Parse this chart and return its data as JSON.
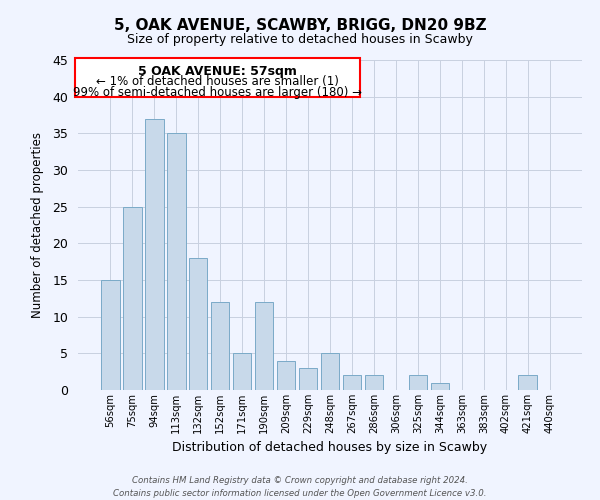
{
  "title": "5, OAK AVENUE, SCAWBY, BRIGG, DN20 9BZ",
  "subtitle": "Size of property relative to detached houses in Scawby",
  "xlabel": "Distribution of detached houses by size in Scawby",
  "ylabel": "Number of detached properties",
  "bar_color": "#c8d9ea",
  "bar_edge_color": "#7aaac8",
  "categories": [
    "56sqm",
    "75sqm",
    "94sqm",
    "113sqm",
    "132sqm",
    "152sqm",
    "171sqm",
    "190sqm",
    "209sqm",
    "229sqm",
    "248sqm",
    "267sqm",
    "286sqm",
    "306sqm",
    "325sqm",
    "344sqm",
    "363sqm",
    "383sqm",
    "402sqm",
    "421sqm",
    "440sqm"
  ],
  "values": [
    15,
    25,
    37,
    35,
    18,
    12,
    5,
    12,
    4,
    3,
    5,
    2,
    2,
    0,
    2,
    1,
    0,
    0,
    0,
    2,
    0
  ],
  "ylim": [
    0,
    45
  ],
  "yticks": [
    0,
    5,
    10,
    15,
    20,
    25,
    30,
    35,
    40,
    45
  ],
  "annotation_line1": "5 OAK AVENUE: 57sqm",
  "annotation_line2": "← 1% of detached houses are smaller (1)",
  "annotation_line3": "99% of semi-detached houses are larger (180) →",
  "footer_line1": "Contains HM Land Registry data © Crown copyright and database right 2024.",
  "footer_line2": "Contains public sector information licensed under the Open Government Licence v3.0.",
  "bg_color": "#f0f4ff",
  "grid_color": "#c8d0e0"
}
